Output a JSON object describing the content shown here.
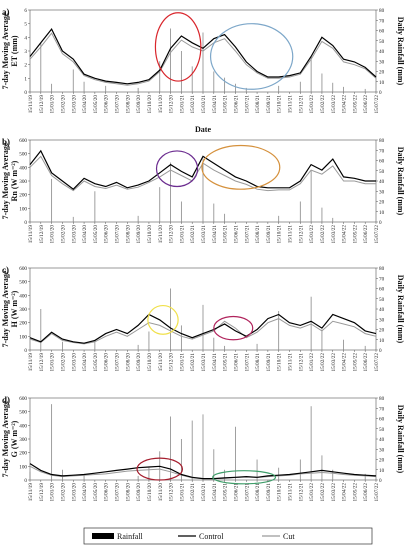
{
  "chart_data": [
    {
      "type": "line",
      "panel_label": "a)",
      "ylabel_lines": [
        "7-day Moving Average",
        "ET (mm)"
      ],
      "y2label": "Daily Rainfall (mm)",
      "xlabel": "Date",
      "ylim": [
        0,
        6
      ],
      "yticks": [
        0,
        1,
        2,
        3,
        4,
        5,
        6
      ],
      "y2lim": [
        0,
        80
      ],
      "y2ticks": [
        0,
        10,
        20,
        30,
        40,
        50,
        60,
        70,
        80
      ],
      "series": [
        {
          "name": "Control",
          "color": "#000000",
          "values": [
            2.6,
            3.6,
            4.6,
            3.0,
            2.4,
            1.3,
            1.0,
            0.8,
            0.7,
            0.6,
            0.7,
            0.9,
            1.6,
            3.2,
            4.1,
            3.6,
            3.2,
            3.9,
            4.2,
            3.3,
            2.2,
            1.5,
            1.1,
            1.1,
            1.2,
            1.4,
            2.6,
            4.0,
            3.4,
            2.4,
            2.2,
            1.8,
            1.1
          ]
        },
        {
          "name": "Cut",
          "color": "#9a9a9a",
          "values": [
            2.4,
            3.3,
            4.3,
            2.8,
            2.2,
            1.2,
            0.9,
            0.7,
            0.6,
            0.5,
            0.6,
            0.8,
            1.5,
            2.9,
            3.8,
            3.3,
            3.0,
            3.6,
            3.9,
            3.0,
            2.0,
            1.4,
            1.0,
            1.0,
            1.1,
            1.3,
            2.4,
            3.7,
            3.2,
            2.2,
            2.0,
            1.7,
            1.0
          ]
        }
      ],
      "rainfall": [
        12,
        48,
        8,
        0,
        22,
        10,
        0,
        6,
        0,
        0,
        4,
        0,
        30,
        62,
        40,
        25,
        58,
        20,
        14,
        8,
        4,
        0,
        0,
        6,
        0,
        10,
        35,
        18,
        9,
        5,
        0,
        3,
        0
      ],
      "ellipses": [
        {
          "color": "#d9262c",
          "cx": 13.7,
          "cy": 3.3,
          "rx": 2.1,
          "ry": 2.5
        },
        {
          "color": "#7da7c9",
          "cx": 20.5,
          "cy": 2.6,
          "rx": 3.8,
          "ry": 2.4
        }
      ]
    },
    {
      "type": "line",
      "panel_label": "b)",
      "ylabel_lines": [
        "7-day Moving Average",
        "Rn (W m⁻²)"
      ],
      "y2label": "Daily Rainfall (mm)",
      "xlabel": "",
      "ylim": [
        0,
        600
      ],
      "yticks": [
        0,
        100,
        200,
        300,
        400,
        500,
        600
      ],
      "y2lim": [
        0,
        80
      ],
      "y2ticks": [
        0,
        10,
        20,
        30,
        40,
        50,
        60,
        70,
        80
      ],
      "series": [
        {
          "name": "Control",
          "color": "#000000",
          "values": [
            420,
            520,
            360,
            300,
            240,
            320,
            280,
            260,
            290,
            250,
            270,
            300,
            360,
            420,
            370,
            330,
            480,
            430,
            380,
            330,
            300,
            260,
            250,
            250,
            250,
            300,
            420,
            380,
            460,
            330,
            320,
            300,
            300
          ]
        },
        {
          "name": "Cut",
          "color": "#9a9a9a",
          "values": [
            400,
            480,
            340,
            280,
            230,
            300,
            260,
            245,
            270,
            240,
            255,
            290,
            330,
            380,
            340,
            300,
            430,
            380,
            340,
            300,
            275,
            240,
            230,
            235,
            235,
            280,
            380,
            350,
            410,
            300,
            300,
            280,
            280
          ]
        }
      ],
      "rainfall": [
        10,
        0,
        42,
        0,
        5,
        0,
        30,
        0,
        0,
        0,
        6,
        0,
        34,
        58,
        20,
        0,
        62,
        18,
        8,
        0,
        0,
        0,
        0,
        6,
        0,
        20,
        50,
        14,
        4,
        0,
        0,
        0,
        0
      ],
      "ellipses": [
        {
          "color": "#6b2c8f",
          "cx": 13.6,
          "cy": 390,
          "rx": 1.9,
          "ry": 130
        },
        {
          "color": "#d5913d",
          "cx": 19.5,
          "cy": 400,
          "rx": 3.6,
          "ry": 160
        }
      ]
    },
    {
      "type": "line",
      "panel_label": "c)",
      "ylabel_lines": [
        "7-day Moving Average",
        "H (W m⁻²)"
      ],
      "y2label": "Daily Rainfall (mm)",
      "xlabel": "",
      "ylim": [
        0,
        600
      ],
      "yticks": [
        0,
        100,
        200,
        300,
        400,
        500,
        600
      ],
      "y2lim": [
        0,
        80
      ],
      "y2ticks": [
        0,
        10,
        20,
        30,
        40,
        50,
        60,
        70,
        80
      ],
      "series": [
        {
          "name": "Control",
          "color": "#000000",
          "values": [
            90,
            60,
            130,
            80,
            60,
            50,
            70,
            120,
            150,
            120,
            180,
            260,
            220,
            160,
            120,
            90,
            120,
            150,
            190,
            140,
            100,
            150,
            230,
            260,
            200,
            180,
            210,
            160,
            260,
            230,
            200,
            140,
            120
          ]
        },
        {
          "name": "Cut",
          "color": "#9a9a9a",
          "values": [
            80,
            55,
            120,
            70,
            55,
            45,
            60,
            100,
            130,
            100,
            150,
            200,
            180,
            140,
            100,
            80,
            110,
            140,
            210,
            160,
            90,
            130,
            200,
            230,
            180,
            160,
            190,
            140,
            210,
            190,
            170,
            120,
            100
          ]
        }
      ],
      "rainfall": [
        0,
        40,
        0,
        8,
        0,
        0,
        10,
        0,
        0,
        0,
        5,
        18,
        0,
        60,
        24,
        0,
        44,
        12,
        4,
        0,
        0,
        6,
        0,
        38,
        0,
        0,
        52,
        20,
        0,
        10,
        0,
        4,
        0
      ],
      "ellipses": [
        {
          "color": "#f0e04a",
          "cx": 12.3,
          "cy": 220,
          "rx": 1.4,
          "ry": 105
        },
        {
          "color": "#b0235c",
          "cx": 18.8,
          "cy": 160,
          "rx": 1.8,
          "ry": 85
        }
      ]
    },
    {
      "type": "line",
      "panel_label": "d)",
      "ylabel_lines": [
        "7-day Moving Average",
        "G (W m⁻²)"
      ],
      "y2label": "Daily Rainfall (mm)",
      "xlabel": "",
      "ylim": [
        0,
        600
      ],
      "yticks": [
        0,
        100,
        200,
        300,
        400,
        500,
        600
      ],
      "y2lim": [
        0,
        80
      ],
      "y2ticks": [
        0,
        10,
        20,
        30,
        40,
        50,
        60,
        70,
        80
      ],
      "series": [
        {
          "name": "Control",
          "color": "#000000",
          "values": [
            120,
            70,
            40,
            30,
            35,
            40,
            50,
            60,
            70,
            80,
            90,
            95,
            100,
            80,
            40,
            20,
            10,
            10,
            15,
            20,
            25,
            20,
            30,
            35,
            40,
            50,
            60,
            70,
            60,
            50,
            40,
            35,
            30
          ]
        },
        {
          "name": "Cut",
          "color": "#9a9a9a",
          "values": [
            100,
            60,
            35,
            25,
            30,
            35,
            40,
            45,
            55,
            65,
            70,
            75,
            80,
            60,
            35,
            15,
            10,
            10,
            12,
            18,
            22,
            18,
            25,
            30,
            35,
            45,
            50,
            55,
            50,
            40,
            35,
            30,
            25
          ]
        }
      ],
      "rainfall": [
        8,
        0,
        74,
        10,
        0,
        6,
        0,
        0,
        0,
        0,
        4,
        12,
        28,
        62,
        40,
        58,
        64,
        30,
        10,
        52,
        0,
        20,
        0,
        12,
        0,
        20,
        72,
        24,
        10,
        0,
        0,
        6,
        0
      ],
      "ellipses": [
        {
          "color": "#a51d2d",
          "cx": 12.0,
          "cy": 80,
          "rx": 2.1,
          "ry": 80
        },
        {
          "color": "#3f9e6a",
          "cx": 19.8,
          "cy": 20,
          "rx": 2.9,
          "ry": 48
        }
      ]
    }
  ],
  "x_tick_labels": [
    "15/11/19",
    "15/12/19",
    "15/01/20",
    "15/02/20",
    "15/03/20",
    "15/04/20",
    "15/05/20",
    "15/06/20",
    "15/07/20",
    "15/08/20",
    "15/09/20",
    "15/10/20",
    "15/11/20",
    "15/12/20",
    "15/01/21",
    "15/02/21",
    "15/03/21",
    "15/04/21",
    "15/05/21",
    "15/06/21",
    "15/07/21",
    "15/08/21",
    "15/09/21",
    "15/10/21",
    "15/11/21",
    "15/12/21",
    "15/01/22",
    "15/02/22",
    "15/03/22",
    "15/04/22",
    "15/05/22",
    "15/06/22",
    "15/07/22"
  ],
  "legend": {
    "rainfall": "Rainfall",
    "control": "Control",
    "cut": "Cut"
  },
  "colors": {
    "control": "#000000",
    "cut": "#9a9a9a",
    "rainfall": "#888888"
  }
}
